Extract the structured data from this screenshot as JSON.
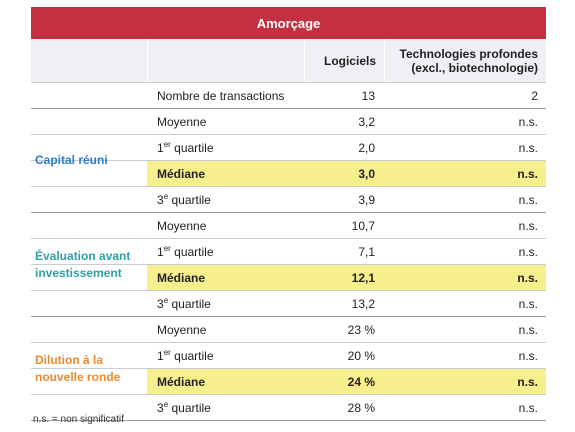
{
  "title": "Amorçage",
  "headers": {
    "col1": "Logiciels",
    "col2_line1": "Technologies profondes",
    "col2_line2": "(excl., biotechnologie)"
  },
  "transactions": {
    "label": "Nombre de transactions",
    "logiciels": "13",
    "tech": "2"
  },
  "labels": {
    "moyenne": "Moyenne",
    "q1_num": "1",
    "q1_sup": "er",
    "q1_rest": " quartile",
    "mediane": "Médiane",
    "q3_num": "3",
    "q3_sup": "e",
    "q3_rest": " quartile"
  },
  "groups": [
    {
      "name": "Capital réuni",
      "color": "#2e7cc1",
      "moyenne": [
        "3,2",
        "n.s."
      ],
      "q1": [
        "2,0",
        "n.s."
      ],
      "mediane": [
        "3,0",
        "n.s."
      ],
      "q3": [
        "3,9",
        "n.s."
      ]
    },
    {
      "name_line1": "Évaluation avant",
      "name_line2": "investissement",
      "color": "#2fa0a8",
      "moyenne": [
        "10,7",
        "n.s."
      ],
      "q1": [
        "7,1",
        "n.s."
      ],
      "mediane": [
        "12,1",
        "n.s."
      ],
      "q3": [
        "13,2",
        "n.s."
      ]
    },
    {
      "name_line1": "Dilution à la",
      "name_line2": "nouvelle ronde",
      "color": "#ee8a2c",
      "moyenne": [
        "23 %",
        "n.s."
      ],
      "q1": [
        "20 %",
        "n.s."
      ],
      "mediane": [
        "24 %",
        "n.s."
      ],
      "q3": [
        "28 %",
        "n.s."
      ]
    }
  ],
  "footnote": "n.s. = non significatif"
}
